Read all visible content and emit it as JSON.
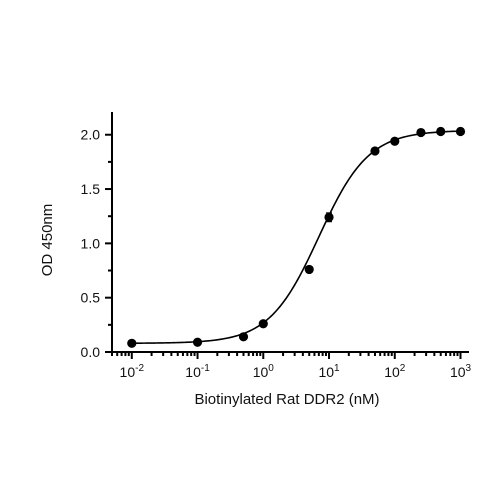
{
  "chart_data": {
    "type": "scatter",
    "xlabel": "Biotinylated Rat DDR2 (nM)",
    "ylabel": "OD 450nm",
    "x_scale": "log10",
    "xlim": [
      0.005,
      1300
    ],
    "ylim": [
      0,
      2.2
    ],
    "y_ticks": [
      0.0,
      0.5,
      1.0,
      1.5,
      2.0
    ],
    "y_tick_labels": [
      "0.0",
      "0.5",
      "1.0",
      "1.5",
      "2.0"
    ],
    "x_ticks": [
      0.01,
      0.1,
      1,
      10,
      100,
      1000
    ],
    "x_tick_labels": [
      {
        "base": "10",
        "exp": "-2"
      },
      {
        "base": "10",
        "exp": "-1"
      },
      {
        "base": "10",
        "exp": "0"
      },
      {
        "base": "10",
        "exp": "1"
      },
      {
        "base": "10",
        "exp": "2"
      },
      {
        "base": "10",
        "exp": "3"
      }
    ],
    "series": [
      {
        "x": [
          0.01,
          0.1,
          0.5,
          1,
          5,
          10,
          50,
          100,
          250,
          500,
          1000
        ],
        "y": [
          0.08,
          0.09,
          0.14,
          0.26,
          0.76,
          1.24,
          1.85,
          1.94,
          2.02,
          2.03,
          2.03
        ],
        "err": [
          0.01,
          0.01,
          0.01,
          0.01,
          0.02,
          0.04,
          0.02,
          0.02,
          0.01,
          0.01,
          0.01
        ]
      }
    ],
    "fit": {
      "model": "4PL",
      "bottom": 0.08,
      "top": 2.04,
      "ec50": 7.0,
      "hill": 1.15
    },
    "grid": false,
    "legend": "none"
  }
}
